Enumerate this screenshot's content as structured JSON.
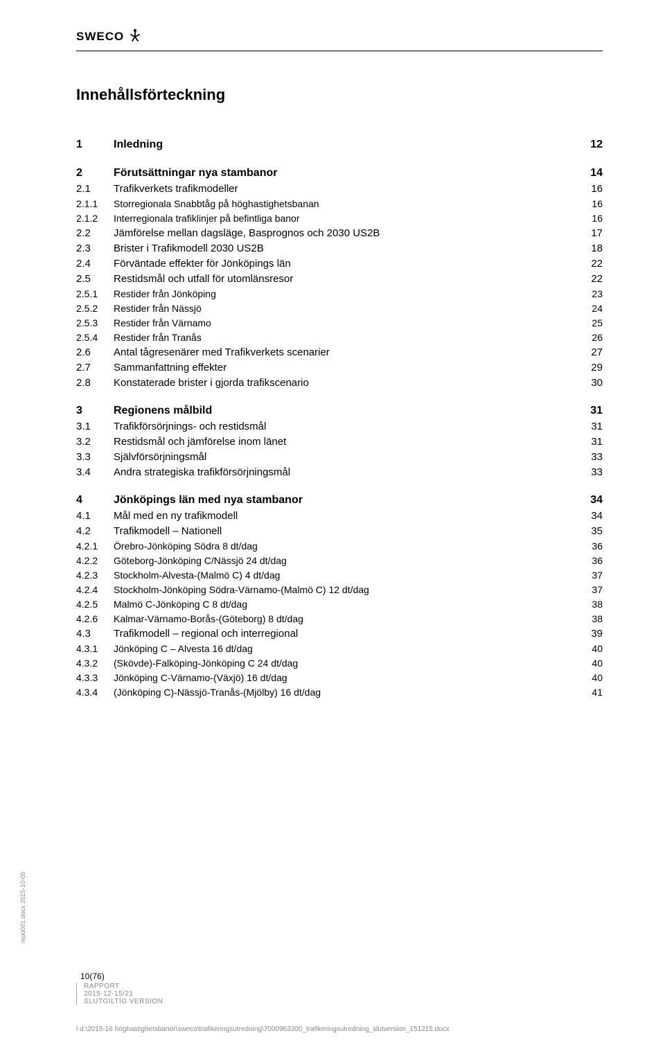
{
  "header": {
    "logo_text": "SWECO"
  },
  "title": "Innehållsförteckning",
  "toc": [
    {
      "num": "1",
      "label": "Inledning",
      "page": "12",
      "level": 0
    },
    {
      "gap": true
    },
    {
      "num": "2",
      "label": "Förutsättningar nya stambanor",
      "page": "14",
      "level": 0
    },
    {
      "num": "2.1",
      "label": "Trafikverkets trafikmodeller",
      "page": "16",
      "level": 1
    },
    {
      "num": "2.1.1",
      "label": "Storregionala Snabbtåg på höghastighetsbanan",
      "page": "16",
      "level": 2
    },
    {
      "num": "2.1.2",
      "label": "Interregionala trafiklinjer på befintliga banor",
      "page": "16",
      "level": 2
    },
    {
      "num": "2.2",
      "label": "Jämförelse mellan dagsläge, Basprognos och 2030 US2B",
      "page": "17",
      "level": 1
    },
    {
      "num": "2.3",
      "label": "Brister i Trafikmodell 2030 US2B",
      "page": "18",
      "level": 1
    },
    {
      "num": "2.4",
      "label": "Förväntade effekter för Jönköpings län",
      "page": "22",
      "level": 1
    },
    {
      "num": "2.5",
      "label": "Restidsmål och utfall för utomlänsresor",
      "page": "22",
      "level": 1
    },
    {
      "num": "2.5.1",
      "label": "Restider från Jönköping",
      "page": "23",
      "level": 2
    },
    {
      "num": "2.5.2",
      "label": "Restider från Nässjö",
      "page": "24",
      "level": 2
    },
    {
      "num": "2.5.3",
      "label": "Restider från Värnamo",
      "page": "25",
      "level": 2
    },
    {
      "num": "2.5.4",
      "label": "Restider från Tranås",
      "page": "26",
      "level": 2
    },
    {
      "num": "2.6",
      "label": "Antal tågresenärer med Trafikverkets scenarier",
      "page": "27",
      "level": 1
    },
    {
      "num": "2.7",
      "label": "Sammanfattning effekter",
      "page": "29",
      "level": 1
    },
    {
      "num": "2.8",
      "label": "Konstaterade brister i gjorda trafikscenario",
      "page": "30",
      "level": 1
    },
    {
      "gap": true
    },
    {
      "num": "3",
      "label": "Regionens målbild",
      "page": "31",
      "level": 0
    },
    {
      "num": "3.1",
      "label": "Trafikförsörjnings- och restidsmål",
      "page": "31",
      "level": 1
    },
    {
      "num": "3.2",
      "label": "Restidsmål och jämförelse inom länet",
      "page": "31",
      "level": 1
    },
    {
      "num": "3.3",
      "label": "Självförsörjningsmål",
      "page": "33",
      "level": 1
    },
    {
      "num": "3.4",
      "label": "Andra strategiska trafikförsörjningsmål",
      "page": "33",
      "level": 1
    },
    {
      "gap": true
    },
    {
      "num": "4",
      "label": "Jönköpings län med nya stambanor",
      "page": "34",
      "level": 0
    },
    {
      "num": "4.1",
      "label": "Mål med en ny trafikmodell",
      "page": "34",
      "level": 1
    },
    {
      "num": "4.2",
      "label": "Trafikmodell – Nationell",
      "page": "35",
      "level": 1
    },
    {
      "num": "4.2.1",
      "label": "Örebro-Jönköping Södra 8 dt/dag",
      "page": "36",
      "level": 2
    },
    {
      "num": "4.2.2",
      "label": "Göteborg-Jönköping C/Nässjö 24 dt/dag",
      "page": "36",
      "level": 2
    },
    {
      "num": "4.2.3",
      "label": "Stockholm-Alvesta-(Malmö C) 4 dt/dag",
      "page": "37",
      "level": 2
    },
    {
      "num": "4.2.4",
      "label": "Stockholm-Jönköping Södra-Värnamo-(Malmö C) 12 dt/dag",
      "page": "37",
      "level": 2
    },
    {
      "num": "4.2.5",
      "label": "Malmö C-Jönköping C 8 dt/dag",
      "page": "38",
      "level": 2
    },
    {
      "num": "4.2.6",
      "label": "Kalmar-Värnamo-Borås-(Göteborg) 8 dt/dag",
      "page": "38",
      "level": 2
    },
    {
      "num": "4.3",
      "label": "Trafikmodell – regional och interregional",
      "page": "39",
      "level": 1
    },
    {
      "num": "4.3.1",
      "label": "Jönköping C – Alvesta 16 dt/dag",
      "page": "40",
      "level": 2
    },
    {
      "num": "4.3.2",
      "label": "(Skövde)-Falköping-Jönköping C 24 dt/dag",
      "page": "40",
      "level": 2
    },
    {
      "num": "4.3.3",
      "label": "Jönköping C-Värnamo-(Växjö) 16 dt/dag",
      "page": "40",
      "level": 2
    },
    {
      "num": "4.3.4",
      "label": "(Jönköping C)-Nässjö-Tranås-(Mjölby) 16 dt/dag",
      "page": "41",
      "level": 2
    }
  ],
  "footer": {
    "page_count": "10(76)",
    "report": "RAPPORT",
    "date": "2015-12-15/21",
    "version": "SLUTGILTIG VERSION",
    "sidecode": "repo001.docx 2015-10-05",
    "path": "l d:\\2015-16 höghastighetsbanor\\sweco\\trafikeringsutredning\\7000963300_trafikeringsutredning_slutversion_151215.docx"
  }
}
